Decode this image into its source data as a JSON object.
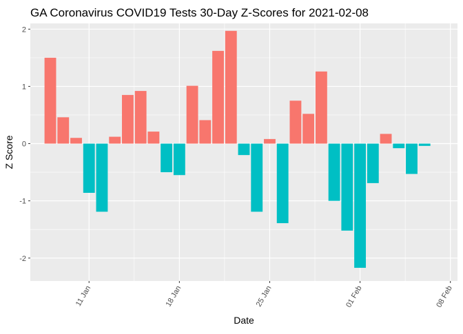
{
  "chart_data": {
    "type": "bar",
    "title": "GA Coronavirus COVID19 Tests 30-Day Z-Scores for 2021-02-08",
    "xlabel": "Date",
    "ylabel": "Z Score",
    "ylim": [
      -2.4,
      2.1
    ],
    "xlim": [
      "2021-01-07",
      "2021-02-08"
    ],
    "y_ticks": [
      -2,
      -1,
      0,
      1,
      2
    ],
    "y_tick_labels": [
      "-2",
      "-1",
      "0",
      "1",
      "2"
    ],
    "x_ticks": [
      "2021-01-11",
      "2021-01-18",
      "2021-01-25",
      "2021-02-01",
      "2021-02-08"
    ],
    "x_tick_labels": [
      "11 Jan",
      "18 Jan",
      "25 Jan",
      "01 Feb",
      "08 Feb"
    ],
    "grid": true,
    "legend": "none",
    "colors": {
      "positive": "#F8766D",
      "negative": "#00BFC4",
      "panel": "#EBEBEB",
      "grid": "#FFFFFF"
    },
    "x": [
      "2021-01-08",
      "2021-01-09",
      "2021-01-10",
      "2021-01-11",
      "2021-01-12",
      "2021-01-13",
      "2021-01-14",
      "2021-01-15",
      "2021-01-16",
      "2021-01-17",
      "2021-01-18",
      "2021-01-19",
      "2021-01-20",
      "2021-01-21",
      "2021-01-22",
      "2021-01-23",
      "2021-01-24",
      "2021-01-25",
      "2021-01-26",
      "2021-01-27",
      "2021-01-28",
      "2021-01-29",
      "2021-01-30",
      "2021-01-31",
      "2021-02-01",
      "2021-02-02",
      "2021-02-03",
      "2021-02-04",
      "2021-02-05",
      "2021-02-06",
      "2021-02-07"
    ],
    "values": [
      1.5,
      0.46,
      0.1,
      -0.86,
      -1.19,
      0.12,
      0.85,
      0.92,
      0.21,
      -0.5,
      -0.55,
      1.01,
      0.41,
      1.62,
      1.97,
      -0.2,
      -1.19,
      0.08,
      -1.39,
      0.75,
      0.52,
      1.26,
      -1.0,
      -1.52,
      -2.17,
      -0.69,
      0.17,
      -0.08,
      -0.53,
      -0.04,
      null
    ]
  }
}
